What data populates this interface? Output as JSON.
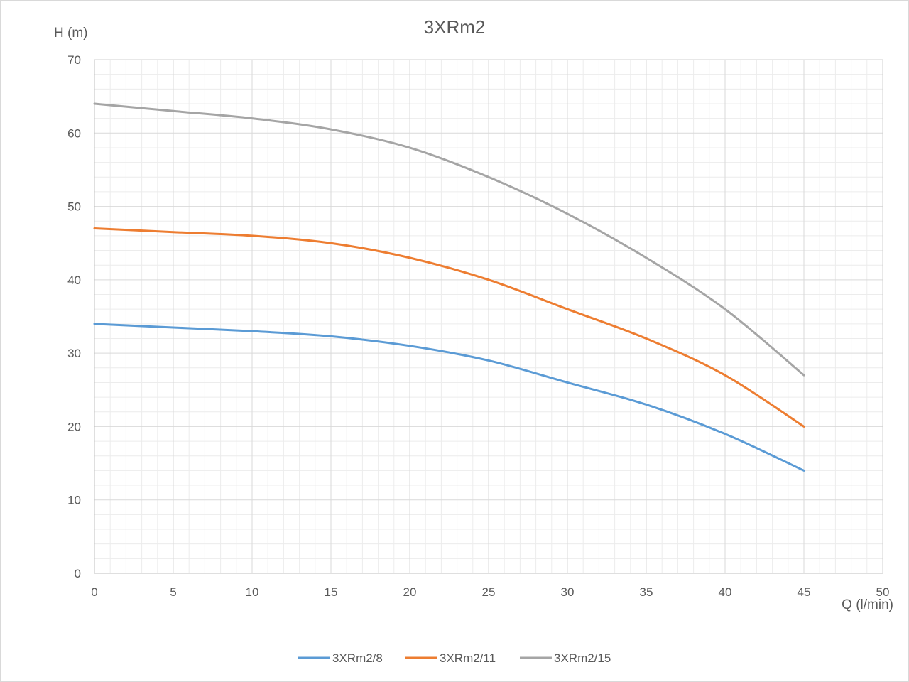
{
  "chart_data": {
    "type": "line",
    "title": "3XRm2",
    "xlabel": "Q (l/min)",
    "ylabel": "H (m)",
    "xlim": [
      0,
      50
    ],
    "ylim": [
      0,
      70
    ],
    "x_ticks": [
      "0",
      "5",
      "10",
      "15",
      "20",
      "25",
      "30",
      "35",
      "40",
      "45",
      "50"
    ],
    "y_ticks": [
      "0",
      "10",
      "20",
      "30",
      "40",
      "50",
      "60",
      "70"
    ],
    "x_tick_values": [
      0,
      5,
      10,
      15,
      20,
      25,
      30,
      35,
      40,
      45,
      50
    ],
    "y_tick_values": [
      0,
      10,
      20,
      30,
      40,
      50,
      60,
      70
    ],
    "grid": "major and minor",
    "legend_position": "bottom",
    "x": [
      0,
      5,
      10,
      15,
      20,
      25,
      30,
      35,
      40,
      45
    ],
    "series": [
      {
        "name": "3XRm2/8",
        "color": "#5b9bd5",
        "values": [
          34,
          33.5,
          33,
          32.3,
          31,
          29,
          26,
          23,
          19,
          14
        ]
      },
      {
        "name": "3XRm2/11",
        "color": "#ed7d31",
        "values": [
          47,
          46.5,
          46,
          45,
          43,
          40,
          36,
          32,
          27,
          20
        ]
      },
      {
        "name": "3XRm2/15",
        "color": "#a5a5a5",
        "values": [
          64,
          63,
          62,
          60.5,
          58,
          54,
          49,
          43,
          36,
          27
        ]
      }
    ]
  }
}
